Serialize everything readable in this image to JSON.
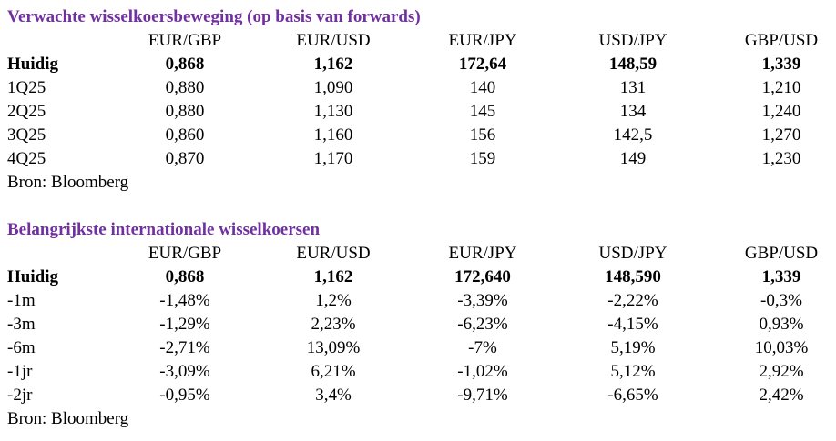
{
  "tables": [
    {
      "title": "Verwachte wisselkoersbeweging (op basis van forwards)",
      "columns": [
        "EUR/GBP",
        "EUR/USD",
        "EUR/JPY",
        "USD/JPY",
        "GBP/USD"
      ],
      "rows": [
        {
          "label": "Huidig",
          "cells": [
            "0,868",
            "1,162",
            "172,64",
            "148,59",
            "1,339"
          ]
        },
        {
          "label": "1Q25",
          "cells": [
            "0,880",
            "1,090",
            "140",
            "131",
            "1,210"
          ]
        },
        {
          "label": "2Q25",
          "cells": [
            "0,880",
            "1,130",
            "145",
            "134",
            "1,240"
          ]
        },
        {
          "label": "3Q25",
          "cells": [
            "0,860",
            "1,160",
            "156",
            "142,5",
            "1,270"
          ]
        },
        {
          "label": "4Q25",
          "cells": [
            "0,870",
            "1,170",
            "159",
            "149",
            "1,230"
          ]
        }
      ],
      "source": "Bron: Bloomberg"
    },
    {
      "title": "Belangrijkste internationale wisselkoersen",
      "columns": [
        "EUR/GBP",
        "EUR/USD",
        "EUR/JPY",
        "USD/JPY",
        "GBP/USD"
      ],
      "rows": [
        {
          "label": "Huidig",
          "cells": [
            "0,868",
            "1,162",
            "172,640",
            "148,590",
            "1,339"
          ]
        },
        {
          "label": "-1m",
          "cells": [
            "-1,48%",
            "1,2%",
            "-3,39%",
            "-2,22%",
            "-0,3%"
          ]
        },
        {
          "label": "-3m",
          "cells": [
            "-1,29%",
            "2,23%",
            "-6,23%",
            "-4,15%",
            "0,93%"
          ]
        },
        {
          "label": "-6m",
          "cells": [
            "-2,71%",
            "13,09%",
            "-7%",
            "5,19%",
            "10,03%"
          ]
        },
        {
          "label": "-1jr",
          "cells": [
            "-3,09%",
            "6,21%",
            "-1,02%",
            "5,12%",
            "2,92%"
          ]
        },
        {
          "label": "-2jr",
          "cells": [
            "-0,95%",
            "3,4%",
            "-9,71%",
            "-6,65%",
            "2,42%"
          ]
        }
      ],
      "source": "Bron: Bloomberg"
    }
  ]
}
